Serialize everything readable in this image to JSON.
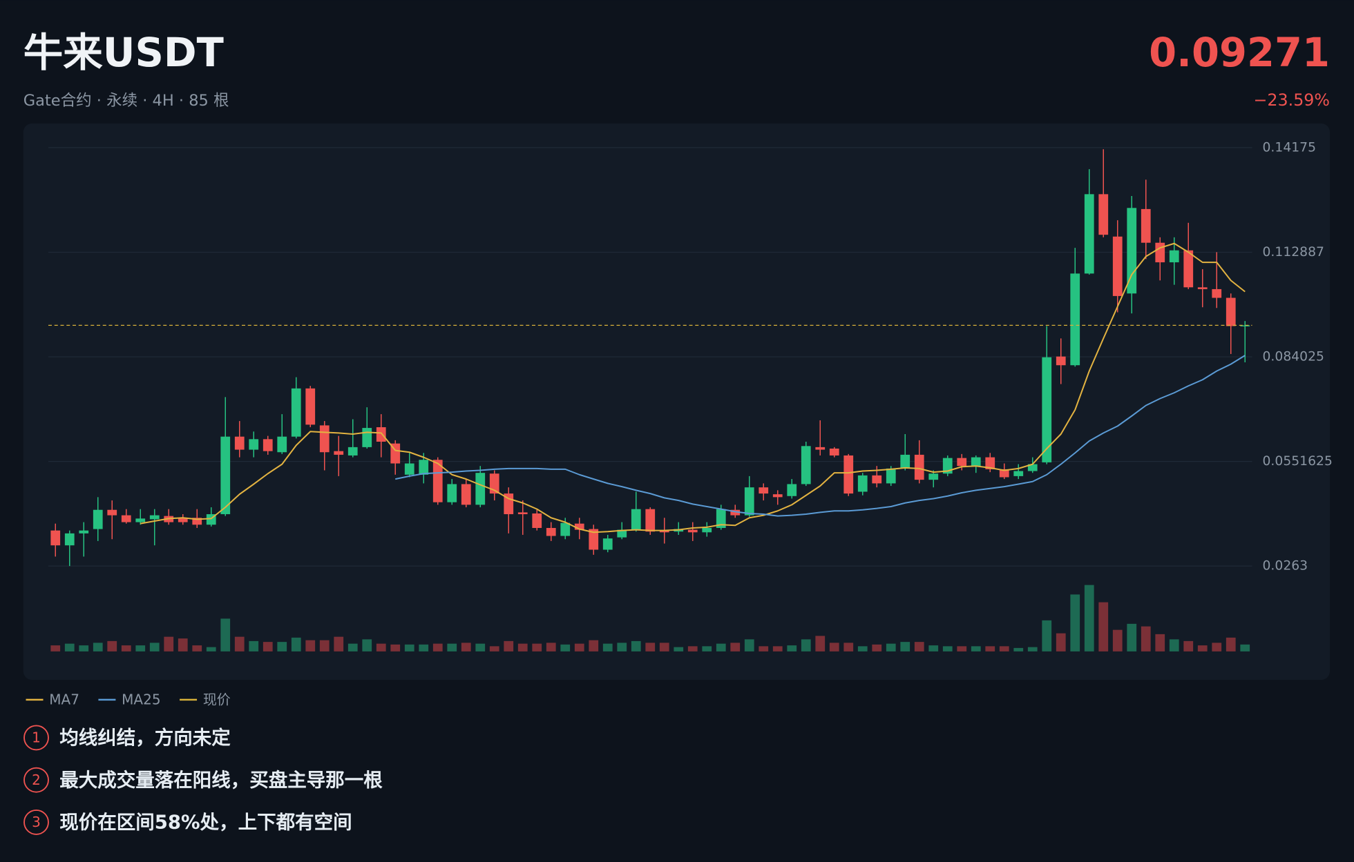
{
  "header": {
    "title": "牛来USDT",
    "subtitle": "Gate合约 · 永续 · 4H · 85 根",
    "change": "−23.59%"
  },
  "chart_data": {
    "type": "candlestick",
    "ylim": [
      0.0263,
      0.14175
    ],
    "yticks": [
      0.14175,
      0.112887,
      0.084025,
      0.0551625,
      0.0263
    ],
    "grid": true,
    "up_color": "#26c281",
    "down_color": "#ef5350",
    "volume_up_color": "#1d6a53",
    "volume_down_color": "#7b3037",
    "current_price": 0.09271,
    "current_price_name": "现价",
    "current_price_color": "#d9b23a",
    "open": [
      0.0361,
      0.032,
      0.0353,
      0.0365,
      0.0418,
      0.0403,
      0.0384,
      0.0392,
      0.0401,
      0.0396,
      0.0396,
      0.0377,
      0.0406,
      0.062,
      0.0584,
      0.0613,
      0.0577,
      0.062,
      0.0753,
      0.0651,
      0.058,
      0.0568,
      0.0591,
      0.0646,
      0.0601,
      0.0515,
      0.0515,
      0.0556,
      0.0439,
      0.0489,
      0.0432,
      0.0518,
      0.0463,
      0.0411,
      0.0408,
      0.0368,
      0.0346,
      0.038,
      0.0365,
      0.0308,
      0.0342,
      0.0363,
      0.042,
      0.0361,
      0.0358,
      0.0363,
      0.0356,
      0.0368,
      0.0418,
      0.0403,
      0.048,
      0.0461,
      0.0456,
      0.0489,
      0.0591,
      0.0587,
      0.0568,
      0.0468,
      0.0513,
      0.0491,
      0.0532,
      0.057,
      0.0501,
      0.0518,
      0.0561,
      0.0539,
      0.0563,
      0.053,
      0.0511,
      0.0525,
      0.0549,
      0.0841,
      0.0817,
      0.107,
      0.1289,
      0.1172,
      0.1015,
      0.1248,
      0.1155,
      0.1101,
      0.1134,
      0.1032,
      0.1027,
      0.1003,
      0.0925
    ],
    "high": [
      0.038,
      0.0361,
      0.0384,
      0.0453,
      0.0444,
      0.042,
      0.042,
      0.042,
      0.042,
      0.0406,
      0.042,
      0.0425,
      0.0729,
      0.0663,
      0.0634,
      0.0622,
      0.0682,
      0.0784,
      0.076,
      0.0663,
      0.0622,
      0.0668,
      0.0701,
      0.0682,
      0.061,
      0.0575,
      0.0575,
      0.0563,
      0.0503,
      0.0503,
      0.0539,
      0.0527,
      0.048,
      0.0444,
      0.042,
      0.0384,
      0.0396,
      0.0396,
      0.0377,
      0.0349,
      0.0384,
      0.0468,
      0.0425,
      0.0396,
      0.0384,
      0.0384,
      0.0384,
      0.0432,
      0.0432,
      0.0511,
      0.0491,
      0.0472,
      0.0503,
      0.0606,
      0.0665,
      0.0591,
      0.0572,
      0.052,
      0.0539,
      0.0539,
      0.0627,
      0.061,
      0.0527,
      0.0568,
      0.0572,
      0.0568,
      0.0575,
      0.0546,
      0.0544,
      0.0563,
      0.0925,
      0.0891,
      0.1141,
      0.1358,
      0.1413,
      0.1217,
      0.1284,
      0.1329,
      0.117,
      0.117,
      0.121,
      0.1082,
      0.1129,
      0.1015,
      0.0939
    ],
    "low": [
      0.0289,
      0.0263,
      0.0289,
      0.0332,
      0.0337,
      0.038,
      0.0377,
      0.032,
      0.0377,
      0.0377,
      0.0368,
      0.0372,
      0.0401,
      0.0563,
      0.0563,
      0.057,
      0.0572,
      0.0615,
      0.0646,
      0.0527,
      0.0511,
      0.0563,
      0.0587,
      0.0563,
      0.0515,
      0.0508,
      0.0491,
      0.0432,
      0.0432,
      0.0425,
      0.0425,
      0.0444,
      0.0353,
      0.0349,
      0.0361,
      0.0332,
      0.0337,
      0.0337,
      0.0294,
      0.0301,
      0.0337,
      0.0358,
      0.0349,
      0.0325,
      0.0349,
      0.0332,
      0.0344,
      0.0363,
      0.0396,
      0.0399,
      0.0444,
      0.0432,
      0.0449,
      0.0484,
      0.0568,
      0.0563,
      0.0456,
      0.0458,
      0.048,
      0.0484,
      0.0527,
      0.0491,
      0.048,
      0.0511,
      0.0527,
      0.052,
      0.0522,
      0.0503,
      0.0503,
      0.052,
      0.0544,
      0.0765,
      0.0813,
      0.1067,
      0.117,
      0.0963,
      0.096,
      0.111,
      0.1051,
      0.1039,
      0.1027,
      0.0977,
      0.0975,
      0.0848,
      0.0825
    ],
    "close": [
      0.032,
      0.0353,
      0.0361,
      0.0418,
      0.0403,
      0.0384,
      0.0394,
      0.0403,
      0.0384,
      0.0384,
      0.0377,
      0.0406,
      0.062,
      0.0584,
      0.0613,
      0.058,
      0.062,
      0.0753,
      0.0653,
      0.0577,
      0.057,
      0.0591,
      0.0644,
      0.0606,
      0.0546,
      0.0546,
      0.0556,
      0.0439,
      0.0489,
      0.0432,
      0.052,
      0.0463,
      0.0406,
      0.0406,
      0.0368,
      0.0346,
      0.0382,
      0.0363,
      0.0308,
      0.0339,
      0.0363,
      0.042,
      0.0358,
      0.0356,
      0.0365,
      0.0356,
      0.0368,
      0.042,
      0.0403,
      0.048,
      0.0463,
      0.0453,
      0.0489,
      0.0594,
      0.0584,
      0.0568,
      0.0463,
      0.0513,
      0.0491,
      0.0532,
      0.057,
      0.0501,
      0.0518,
      0.0561,
      0.0539,
      0.0563,
      0.053,
      0.0508,
      0.0525,
      0.0544,
      0.0839,
      0.0817,
      0.107,
      0.1289,
      0.1177,
      0.1008,
      0.1251,
      0.1155,
      0.1101,
      0.1134,
      0.1032,
      0.1027,
      0.1003,
      0.0925,
      0.09271
    ],
    "volume": [
      7,
      9,
      7,
      10,
      12,
      7,
      7,
      10,
      17,
      15,
      7,
      5,
      38,
      17,
      12,
      11,
      11,
      16,
      13,
      13,
      17,
      9,
      14,
      9,
      8,
      8,
      8,
      9,
      9,
      10,
      9,
      6,
      12,
      9,
      9,
      10,
      8,
      9,
      13,
      9,
      10,
      12,
      10,
      10,
      5,
      6,
      6,
      9,
      10,
      14,
      6,
      6,
      7,
      14,
      18,
      10,
      10,
      6,
      8,
      9,
      11,
      11,
      7,
      6,
      6,
      6,
      6,
      6,
      4,
      5,
      36,
      21,
      66,
      77,
      57,
      25,
      32,
      29,
      20,
      14,
      12,
      7,
      10,
      16,
      8
    ],
    "series": [
      {
        "name": "MA7",
        "color": "#e3b341",
        "values": [
          null,
          null,
          null,
          null,
          null,
          null,
          0.038,
          0.0387,
          0.0394,
          0.0396,
          0.0392,
          0.0394,
          0.0425,
          0.0461,
          0.0489,
          0.0518,
          0.0544,
          0.0596,
          0.0634,
          0.0632,
          0.063,
          0.0627,
          0.0632,
          0.063,
          0.0582,
          0.0577,
          0.0563,
          0.0546,
          0.0515,
          0.0503,
          0.0487,
          0.0472,
          0.0449,
          0.0437,
          0.042,
          0.0396,
          0.0384,
          0.0365,
          0.0356,
          0.0358,
          0.0361,
          0.0363,
          0.0361,
          0.0361,
          0.0363,
          0.0368,
          0.037,
          0.0377,
          0.0375,
          0.0396,
          0.0403,
          0.0415,
          0.0432,
          0.0458,
          0.0484,
          0.052,
          0.052,
          0.0525,
          0.0527,
          0.053,
          0.0534,
          0.0532,
          0.0522,
          0.0525,
          0.0537,
          0.0539,
          0.0534,
          0.0527,
          0.0532,
          0.0544,
          0.0587,
          0.0627,
          0.0694,
          0.0801,
          0.0891,
          0.0979,
          0.1067,
          0.1117,
          0.1141,
          0.1153,
          0.1129,
          0.1101,
          0.1101,
          0.1051,
          0.102
        ]
      },
      {
        "name": "MA25",
        "color": "#5b9bd5",
        "values": [
          null,
          null,
          null,
          null,
          null,
          null,
          null,
          null,
          null,
          null,
          null,
          null,
          null,
          null,
          null,
          null,
          null,
          null,
          null,
          null,
          null,
          null,
          null,
          null,
          0.0503,
          0.0511,
          0.0518,
          0.052,
          0.0522,
          0.0525,
          0.0527,
          0.053,
          0.0532,
          0.0532,
          0.0532,
          0.053,
          0.053,
          0.0515,
          0.0503,
          0.0491,
          0.0482,
          0.0472,
          0.0463,
          0.0451,
          0.0444,
          0.0434,
          0.0427,
          0.042,
          0.0413,
          0.0408,
          0.0406,
          0.0401,
          0.0403,
          0.0406,
          0.0411,
          0.0415,
          0.0415,
          0.0418,
          0.0422,
          0.0427,
          0.0437,
          0.0444,
          0.0449,
          0.0456,
          0.0465,
          0.0472,
          0.0477,
          0.0482,
          0.0489,
          0.0496,
          0.0515,
          0.0544,
          0.0575,
          0.0608,
          0.063,
          0.0649,
          0.0677,
          0.0706,
          0.0725,
          0.0741,
          0.076,
          0.0777,
          0.0801,
          0.082,
          0.0844
        ]
      }
    ]
  },
  "notes": [
    {
      "n": 1,
      "text": "均线纠结，方向未定"
    },
    {
      "n": 2,
      "text": "最大成交量落在阳线，买盘主导那一根"
    },
    {
      "n": 3,
      "text": "现价在区间58%处，上下都有空间"
    }
  ]
}
